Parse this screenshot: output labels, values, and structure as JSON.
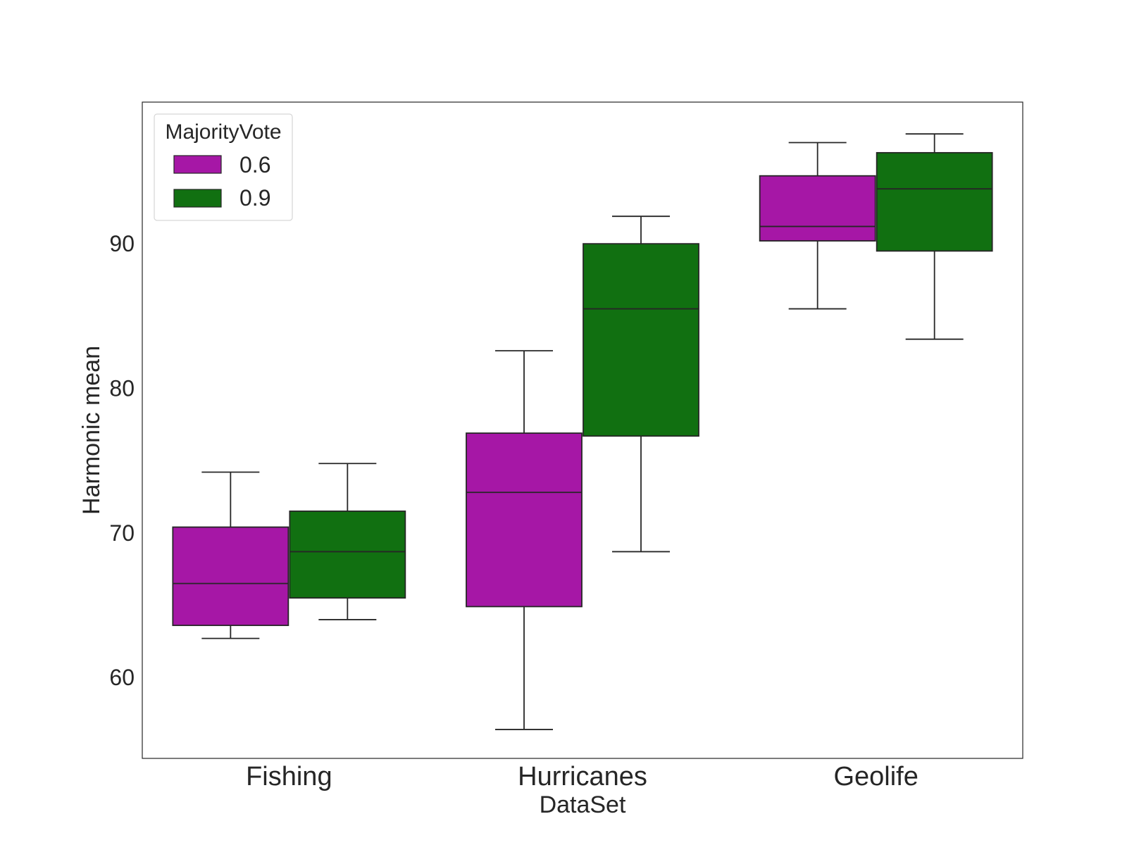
{
  "chart_data": {
    "type": "box",
    "xlabel": "DataSet",
    "ylabel": "Harmonic mean",
    "categories": [
      "Fishing",
      "Hurricanes",
      "Geolife"
    ],
    "ylim": [
      54.4,
      99.8
    ],
    "yticks": [
      60,
      70,
      80,
      90
    ],
    "legend": {
      "title": "MajorityVote",
      "placement": "top-left"
    },
    "grid": false,
    "series": [
      {
        "name": "0.6",
        "color": "#a617a6",
        "boxes": [
          {
            "whisker_low": 62.7,
            "q1": 63.6,
            "median": 66.5,
            "q3": 70.4,
            "whisker_high": 74.2
          },
          {
            "whisker_low": 56.4,
            "q1": 64.9,
            "median": 72.8,
            "q3": 76.9,
            "whisker_high": 82.6
          },
          {
            "whisker_low": 85.5,
            "q1": 90.2,
            "median": 91.2,
            "q3": 94.7,
            "whisker_high": 97.0
          }
        ]
      },
      {
        "name": "0.9",
        "color": "#117011",
        "boxes": [
          {
            "whisker_low": 64.0,
            "q1": 65.5,
            "median": 68.7,
            "q3": 71.5,
            "whisker_high": 74.8
          },
          {
            "whisker_low": 68.7,
            "q1": 76.7,
            "median": 85.5,
            "q3": 90.0,
            "whisker_high": 91.9
          },
          {
            "whisker_low": 83.4,
            "q1": 89.5,
            "median": 93.8,
            "q3": 96.3,
            "whisker_high": 97.6
          }
        ]
      }
    ]
  }
}
